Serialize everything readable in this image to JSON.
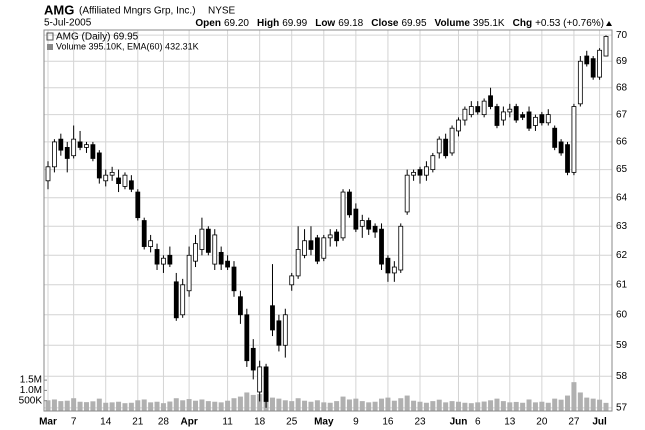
{
  "chart_data": {
    "type": "candlestick",
    "header": {
      "symbol": "AMG",
      "company": "(Affiliated Mngrs Grp, Inc.)",
      "exchange": "NYSE",
      "date": "5-Jul-2005",
      "quote": [
        {
          "label": "Open",
          "value": "69.20"
        },
        {
          "label": "High",
          "value": "69.99"
        },
        {
          "label": "Low",
          "value": "69.18"
        },
        {
          "label": "Close",
          "value": "69.95"
        },
        {
          "label": "Volume",
          "value": "395.1K"
        },
        {
          "label": "Chg",
          "value": "+0.53 (+0.76%)"
        }
      ]
    },
    "legend": [
      "AMG (Daily) 69.95",
      "Volume 395.10K, EMA(60) 432.31K"
    ],
    "x": [
      "2005-03-01",
      "2005-03-02",
      "2005-03-03",
      "2005-03-04",
      "2005-03-07",
      "2005-03-08",
      "2005-03-09",
      "2005-03-10",
      "2005-03-11",
      "2005-03-14",
      "2005-03-15",
      "2005-03-16",
      "2005-03-17",
      "2005-03-18",
      "2005-03-21",
      "2005-03-22",
      "2005-03-23",
      "2005-03-24",
      "2005-03-28",
      "2005-03-29",
      "2005-03-30",
      "2005-03-31",
      "2005-04-01",
      "2005-04-04",
      "2005-04-05",
      "2005-04-06",
      "2005-04-07",
      "2005-04-08",
      "2005-04-11",
      "2005-04-12",
      "2005-04-13",
      "2005-04-14",
      "2005-04-15",
      "2005-04-18",
      "2005-04-19",
      "2005-04-20",
      "2005-04-21",
      "2005-04-22",
      "2005-04-25",
      "2005-04-26",
      "2005-04-27",
      "2005-04-28",
      "2005-04-29",
      "2005-05-02",
      "2005-05-03",
      "2005-05-04",
      "2005-05-05",
      "2005-05-06",
      "2005-05-09",
      "2005-05-10",
      "2005-05-11",
      "2005-05-12",
      "2005-05-13",
      "2005-05-16",
      "2005-05-17",
      "2005-05-18",
      "2005-05-19",
      "2005-05-20",
      "2005-05-23",
      "2005-05-24",
      "2005-05-25",
      "2005-05-26",
      "2005-05-27",
      "2005-05-31",
      "2005-06-01",
      "2005-06-02",
      "2005-06-03",
      "2005-06-06",
      "2005-06-07",
      "2005-06-08",
      "2005-06-09",
      "2005-06-10",
      "2005-06-13",
      "2005-06-14",
      "2005-06-15",
      "2005-06-16",
      "2005-06-17",
      "2005-06-20",
      "2005-06-21",
      "2005-06-22",
      "2005-06-23",
      "2005-06-24",
      "2005-06-27",
      "2005-06-28",
      "2005-06-29",
      "2005-06-30",
      "2005-07-01",
      "2005-07-05"
    ],
    "open": [
      64.6,
      65.1,
      66.1,
      65.8,
      65.5,
      66.0,
      65.8,
      65.9,
      65.6,
      64.6,
      64.8,
      64.7,
      64.4,
      64.6,
      64.2,
      63.2,
      62.3,
      62.2,
      61.7,
      62.0,
      61.1,
      60.0,
      60.8,
      61.8,
      62.2,
      62.9,
      61.7,
      62.1,
      61.8,
      61.6,
      60.6,
      60.0,
      58.9,
      57.5,
      58.3,
      60.3,
      59.8,
      59.0,
      61.0,
      61.3,
      62.0,
      62.5,
      62.6,
      61.9,
      62.6,
      62.8,
      62.6,
      64.2,
      63.6,
      63.0,
      63.2,
      63.0,
      62.9,
      61.9,
      61.4,
      61.5,
      63.5,
      64.8,
      65.0,
      64.8,
      65.0,
      65.6,
      66.1,
      65.6,
      66.4,
      66.8,
      67.0,
      67.3,
      67.0,
      67.7,
      67.3,
      66.8,
      67.1,
      67.3,
      67.0,
      67.1,
      66.6,
      67.0,
      66.7,
      66.5,
      66.0,
      65.9,
      64.9,
      67.4,
      69.2,
      69.1,
      68.4,
      69.2
    ],
    "high": [
      65.3,
      66.1,
      66.3,
      66.0,
      66.6,
      66.4,
      66.0,
      66.0,
      65.7,
      65.0,
      65.1,
      65.0,
      64.9,
      64.8,
      64.3,
      63.3,
      62.7,
      62.4,
      62.0,
      62.3,
      61.4,
      61.2,
      62.3,
      62.7,
      63.3,
      63.0,
      62.9,
      62.3,
      62.0,
      61.8,
      60.8,
      60.2,
      59.2,
      58.5,
      58.4,
      61.7,
      60.0,
      60.2,
      61.4,
      63.0,
      62.9,
      63.0,
      62.7,
      62.7,
      62.9,
      62.9,
      64.3,
      64.3,
      63.8,
      63.4,
      63.3,
      63.1,
      63.1,
      62.0,
      61.8,
      63.1,
      65.0,
      65.0,
      65.1,
      65.3,
      65.6,
      66.2,
      66.3,
      66.6,
      66.9,
      67.3,
      67.5,
      67.5,
      67.6,
      68.0,
      67.4,
      67.3,
      67.4,
      67.4,
      67.1,
      67.3,
      67.0,
      67.1,
      67.2,
      66.6,
      66.1,
      66.0,
      67.4,
      69.2,
      69.4,
      69.2,
      69.5,
      69.99
    ],
    "low": [
      64.3,
      64.9,
      65.5,
      64.9,
      65.4,
      65.7,
      65.6,
      65.3,
      64.5,
      64.4,
      64.6,
      64.2,
      64.3,
      64.2,
      63.2,
      62.2,
      62.1,
      61.5,
      61.4,
      61.6,
      59.8,
      59.9,
      60.6,
      61.6,
      62.0,
      62.0,
      61.5,
      61.5,
      61.5,
      60.6,
      59.7,
      58.3,
      57.9,
      57.2,
      57.0,
      59.3,
      58.8,
      58.6,
      60.8,
      61.2,
      61.9,
      62.0,
      61.7,
      61.8,
      62.3,
      62.3,
      62.5,
      63.3,
      62.8,
      62.6,
      62.7,
      62.6,
      61.5,
      61.1,
      61.1,
      61.4,
      63.4,
      64.6,
      64.5,
      64.6,
      64.9,
      65.4,
      65.4,
      65.5,
      66.2,
      66.6,
      66.9,
      67.0,
      66.9,
      67.2,
      66.5,
      66.6,
      66.9,
      66.7,
      66.8,
      66.4,
      66.4,
      66.6,
      66.6,
      65.7,
      65.5,
      64.8,
      64.8,
      67.3,
      68.8,
      68.3,
      68.3,
      69.18
    ],
    "close": [
      65.1,
      66.0,
      65.7,
      65.4,
      66.1,
      65.8,
      65.9,
      65.4,
      64.7,
      64.8,
      64.9,
      64.5,
      64.8,
      64.3,
      63.3,
      62.3,
      62.5,
      61.7,
      61.9,
      61.7,
      59.9,
      61.0,
      62.0,
      62.4,
      62.9,
      62.1,
      62.7,
      61.7,
      61.6,
      60.8,
      60.0,
      58.5,
      58.2,
      58.3,
      57.2,
      59.5,
      59.0,
      60.0,
      61.3,
      62.2,
      62.5,
      62.2,
      61.8,
      62.6,
      62.7,
      62.5,
      64.2,
      63.4,
      62.9,
      63.2,
      62.9,
      62.8,
      61.7,
      61.4,
      61.6,
      63.0,
      64.8,
      64.9,
      64.8,
      65.1,
      65.5,
      66.1,
      65.5,
      66.5,
      66.8,
      67.2,
      67.3,
      67.1,
      67.5,
      67.3,
      66.6,
      67.1,
      67.2,
      66.8,
      66.9,
      66.5,
      66.9,
      66.7,
      67.0,
      65.8,
      65.6,
      64.9,
      67.3,
      69.0,
      68.9,
      68.4,
      69.42,
      69.95
    ],
    "volume": [
      520000,
      560000,
      480000,
      500000,
      620000,
      450000,
      430000,
      470000,
      600000,
      400000,
      420000,
      450000,
      380000,
      400000,
      520000,
      560000,
      420000,
      450000,
      380000,
      460000,
      620000,
      520000,
      580000,
      500000,
      560000,
      480000,
      450000,
      420000,
      500000,
      620000,
      700000,
      900000,
      780000,
      820000,
      950000,
      650000,
      600000,
      520000,
      480000,
      620000,
      500000,
      450000,
      520000,
      420000,
      400000,
      480000,
      700000,
      560000,
      600000,
      480000,
      420000,
      450000,
      600000,
      650000,
      500000,
      620000,
      750000,
      500000,
      450000,
      400000,
      480000,
      550000,
      420000,
      480000,
      450000,
      400000,
      380000,
      420000,
      460000,
      520000,
      600000,
      480000,
      420000,
      440000,
      400000,
      560000,
      420000,
      450000,
      400000,
      600000,
      550000,
      750000,
      1400000,
      900000,
      650000,
      600000,
      550000,
      395100
    ],
    "up_color": "#ffffff",
    "down_color": "#000000",
    "volume_color": "#b0b0b0",
    "log": true,
    "grid": true,
    "ylim": [
      56.9,
      70.2
    ],
    "yticks": [
      57,
      58,
      59,
      60,
      61,
      62,
      63,
      64,
      65,
      66,
      67,
      68,
      69,
      70
    ],
    "vol_ylim": [
      0,
      18500000
    ],
    "vol_ticks": [
      {
        "value": 500000,
        "label": "500K"
      },
      {
        "value": 1000000,
        "label": "1.0M"
      },
      {
        "value": 1500000,
        "label": "1.5M"
      }
    ],
    "xticks": [
      {
        "value": "2005-03-01",
        "label": "Mar"
      },
      {
        "value": "2005-03-07",
        "label": "7"
      },
      {
        "value": "2005-03-14",
        "label": "14"
      },
      {
        "value": "2005-03-21",
        "label": "21"
      },
      {
        "value": "2005-03-28",
        "label": "28"
      },
      {
        "value": "2005-04-01",
        "label": "Apr"
      },
      {
        "value": "2005-04-11",
        "label": "11"
      },
      {
        "value": "2005-04-18",
        "label": "18"
      },
      {
        "value": "2005-04-25",
        "label": "25"
      },
      {
        "value": "2005-05-02",
        "label": "May"
      },
      {
        "value": "2005-05-09",
        "label": "9"
      },
      {
        "value": "2005-05-16",
        "label": "16"
      },
      {
        "value": "2005-05-23",
        "label": "23"
      },
      {
        "value": "2005-06-01",
        "label": "Jun"
      },
      {
        "value": "2005-06-06",
        "label": "6"
      },
      {
        "value": "2005-06-13",
        "label": "13"
      },
      {
        "value": "2005-06-20",
        "label": "20"
      },
      {
        "value": "2005-06-27",
        "label": "27"
      },
      {
        "value": "2005-07-01",
        "label": "Jul"
      }
    ]
  }
}
